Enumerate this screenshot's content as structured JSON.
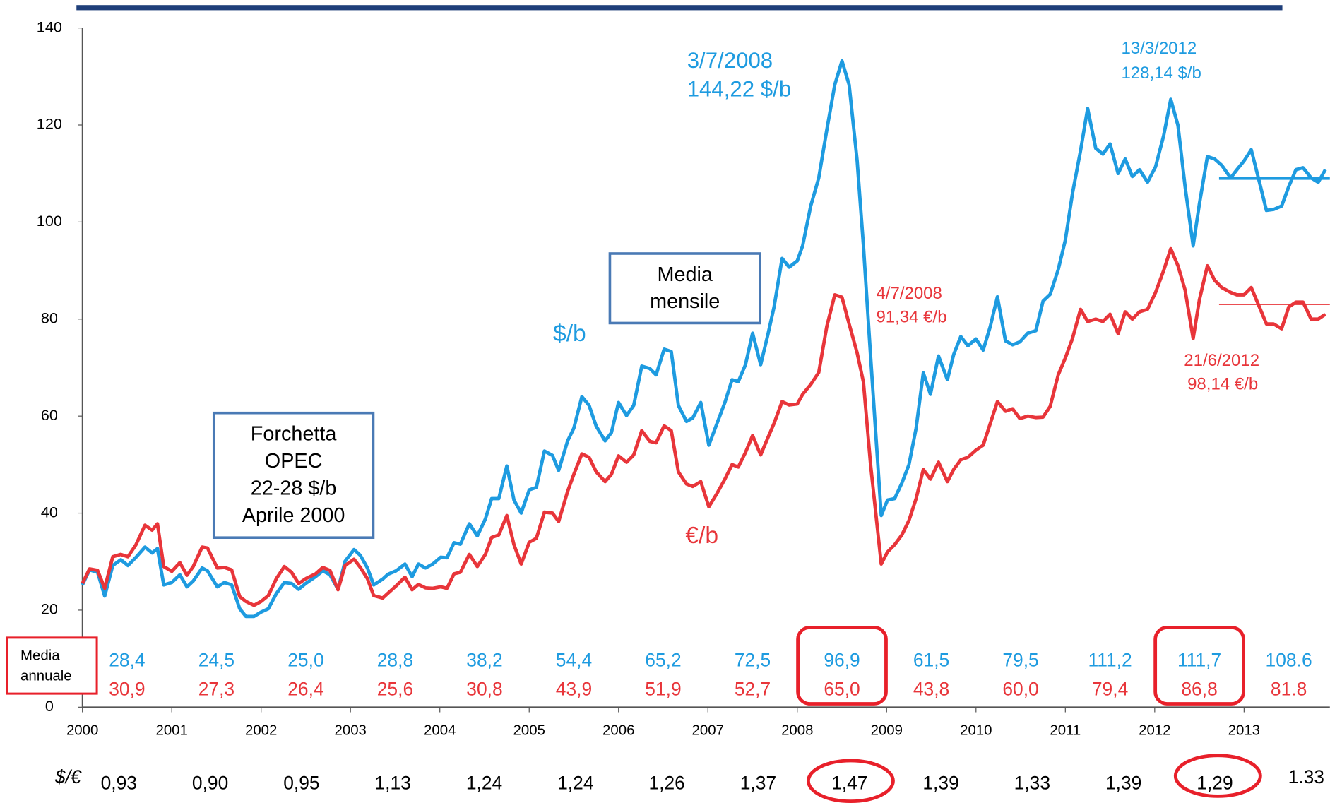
{
  "chart_data": {
    "type": "line",
    "x": [
      2000.0,
      2000.08,
      2000.17,
      2000.25,
      2000.34,
      2000.43,
      2000.51,
      2000.6,
      2000.7,
      2000.78,
      2000.84,
      2000.91,
      2001.0,
      2001.09,
      2001.17,
      2001.24,
      2001.34,
      2001.4,
      2001.51,
      2001.59,
      2001.67,
      2001.76,
      2001.83,
      2001.92,
      2002.0,
      2002.08,
      2002.17,
      2002.26,
      2002.34,
      2002.42,
      2002.5,
      2002.61,
      2002.69,
      2002.77,
      2002.86,
      2002.94,
      2003.04,
      2003.11,
      2003.19,
      2003.26,
      2003.36,
      2003.42,
      2003.51,
      2003.61,
      2003.69,
      2003.76,
      2003.84,
      2003.92,
      2004.01,
      2004.08,
      2004.16,
      2004.23,
      2004.33,
      2004.42,
      2004.51,
      2004.58,
      2004.66,
      2004.75,
      2004.83,
      2004.91,
      2005.0,
      2005.08,
      2005.17,
      2005.26,
      2005.33,
      2005.43,
      2005.5,
      2005.59,
      2005.67,
      2005.75,
      2005.85,
      2005.92,
      2006.0,
      2006.09,
      2006.17,
      2006.26,
      2006.35,
      2006.42,
      2006.51,
      2006.59,
      2006.67,
      2006.76,
      2006.83,
      2006.92,
      2007.01,
      2007.1,
      2007.19,
      2007.27,
      2007.34,
      2007.42,
      2007.5,
      2007.59,
      2007.67,
      2007.74,
      2007.83,
      2007.91,
      2008.0,
      2008.06,
      2008.15,
      2008.24,
      2008.33,
      2008.42,
      2008.5,
      2008.58,
      2008.67,
      2008.74,
      2008.82,
      2008.94,
      2009.01,
      2009.09,
      2009.17,
      2009.25,
      2009.33,
      2009.41,
      2009.49,
      2009.58,
      2009.68,
      2009.75,
      2009.83,
      2009.91,
      2010.0,
      2010.08,
      2010.16,
      2010.24,
      2010.33,
      2010.41,
      2010.49,
      2010.58,
      2010.67,
      2010.75,
      2010.83,
      2010.92,
      2011.0,
      2011.08,
      2011.17,
      2011.25,
      2011.34,
      2011.42,
      2011.5,
      2011.59,
      2011.67,
      2011.75,
      2011.83,
      2011.92,
      2012.01,
      2012.1,
      2012.18,
      2012.26,
      2012.34,
      2012.43,
      2012.5,
      2012.59,
      2012.67,
      2012.75,
      2012.85,
      2012.92,
      2013.0,
      2013.08,
      2013.16,
      2013.25,
      2013.33,
      2013.42,
      2013.5,
      2013.58,
      2013.66,
      2013.75,
      2013.83,
      2013.91
    ],
    "series": [
      {
        "name": "$/b",
        "color": "#1e9be0",
        "values": [
          25.2,
          28.3,
          27.8,
          22.9,
          29.2,
          30.4,
          29.2,
          30.9,
          33.0,
          31.8,
          32.7,
          25.2,
          25.7,
          27.3,
          24.8,
          26.0,
          28.7,
          28.1,
          24.8,
          25.7,
          25.2,
          20.3,
          18.7,
          18.7,
          19.6,
          20.3,
          23.4,
          25.7,
          25.5,
          24.3,
          25.5,
          26.9,
          28.1,
          27.3,
          24.3,
          30.1,
          32.5,
          31.3,
          28.7,
          25.2,
          26.4,
          27.4,
          28.1,
          29.5,
          26.9,
          29.5,
          28.7,
          29.5,
          30.9,
          30.8,
          33.9,
          33.6,
          37.8,
          35.3,
          38.8,
          43,
          43,
          49.7,
          42.7,
          40,
          44.8,
          45.3,
          52.8,
          51.9,
          48.8,
          54.9,
          57.5,
          64,
          62.2,
          57.9,
          54.9,
          56.6,
          62.8,
          60.1,
          62.2,
          70.3,
          69.8,
          68.5,
          73.8,
          73.3,
          62.2,
          58.9,
          59.6,
          62.8,
          54,
          58.4,
          62.8,
          67.5,
          67.1,
          70.6,
          77.1,
          70.6,
          76.7,
          82.5,
          92.5,
          90.7,
          92,
          95.1,
          103.3,
          109.1,
          119,
          128.3,
          133.2,
          128.3,
          112.6,
          95.1,
          72.4,
          39.5,
          42.7,
          43,
          46.2,
          50,
          57.5,
          68.9,
          64.5,
          72.4,
          67.5,
          72.7,
          76.4,
          74.5,
          75.9,
          73.6,
          78.5,
          84.6,
          75.5,
          74.7,
          75.3,
          77.1,
          77.6,
          83.7,
          85.1,
          90.2,
          96.3,
          105.9,
          114.7,
          123.4,
          115.2,
          114,
          116.1,
          110,
          113,
          109.4,
          110.8,
          108.2,
          111.4,
          117.8,
          125.3,
          119.9,
          107.3,
          95.1,
          103.8,
          113.5,
          113,
          111.7,
          109.1,
          110.8,
          112.6,
          114.9,
          109.1,
          102.4,
          102.6,
          103.3,
          107.3,
          110.8,
          111.2,
          109.1,
          108.2,
          110.8
        ]
      },
      {
        "name": "€/b",
        "color": "#e8353a",
        "values": [
          25.5,
          28.5,
          28.2,
          24.5,
          31,
          31.5,
          31,
          33.5,
          37.5,
          36.5,
          37.8,
          29,
          28,
          29.8,
          27.2,
          29,
          33,
          32.8,
          28.7,
          28.8,
          28.3,
          22.8,
          21.8,
          21,
          21.8,
          23,
          26.5,
          29,
          27.8,
          25.5,
          26.5,
          27.5,
          28.8,
          28.2,
          24.2,
          29.2,
          30.5,
          28.8,
          26.5,
          23,
          22.5,
          23.5,
          25,
          26.8,
          24.2,
          25.3,
          24.6,
          24.5,
          24.8,
          24.5,
          27.5,
          27.8,
          31.5,
          29,
          31.5,
          35,
          35.5,
          39.5,
          33.5,
          29.5,
          34,
          34.8,
          40.2,
          40,
          38.3,
          44.5,
          48,
          52.2,
          51.5,
          48.5,
          46.5,
          48,
          51.8,
          50.5,
          52,
          57,
          54.8,
          54.5,
          58,
          57,
          48.5,
          46,
          45.5,
          46.5,
          41.3,
          44,
          47,
          50,
          49.5,
          52.5,
          56,
          52,
          55.5,
          58.5,
          63,
          62.3,
          62.5,
          64.5,
          66.5,
          69,
          78.5,
          85,
          84.5,
          79,
          73,
          67,
          50,
          29.5,
          32,
          33.5,
          35.5,
          38.5,
          43,
          49,
          47,
          50.5,
          46.5,
          49,
          51,
          51.5,
          53,
          54,
          58.5,
          63,
          61,
          61.5,
          59.5,
          60,
          59.7,
          59.8,
          62,
          68.5,
          72,
          76,
          82,
          79.5,
          80,
          79.5,
          81,
          77,
          81.5,
          80,
          81.5,
          82,
          85.5,
          90,
          94.5,
          91,
          86,
          76,
          84,
          91,
          88,
          86.5,
          85.5,
          85,
          85,
          86.5,
          83,
          79,
          79,
          78,
          82.5,
          83.5,
          83.5,
          80,
          80,
          81
        ]
      }
    ],
    "xlim": [
      2000,
      2013.96
    ],
    "ylim": [
      0,
      140
    ],
    "xticks": [
      2000,
      2001,
      2002,
      2003,
      2004,
      2005,
      2006,
      2007,
      2008,
      2009,
      2010,
      2011,
      2012,
      2013
    ],
    "yticks": [
      0,
      20,
      40,
      60,
      80,
      100,
      120,
      140
    ],
    "reference_lines": [
      {
        "series": 0,
        "value": 109,
        "from": 2012.72
      },
      {
        "series": 1,
        "value": 83,
        "from": 2012.72
      }
    ],
    "annotations": [
      [
        "3/7/2008",
        "144,22 $/b"
      ],
      [
        "13/3/2012",
        "128,14 $/b"
      ],
      [
        "4/7/2008",
        "91,34 €/b"
      ],
      [
        "21/6/2012",
        "98,14 €/b"
      ]
    ],
    "text_boxes": [
      [
        "Forchetta",
        "OPEC",
        "22-28 $/b",
        "Aprile 2000"
      ],
      [
        "Media",
        "mensile"
      ]
    ],
    "annual_average": {
      "label": [
        "Media",
        "annuale"
      ],
      "usd": [
        "28,4",
        "24,5",
        "25,0",
        "28,8",
        "38,2",
        "54,4",
        "65,2",
        "72,5",
        "96,9",
        "61,5",
        "79,5",
        "111,2",
        "111,7",
        "108.6"
      ],
      "eur": [
        "30,9",
        "27,3",
        "26,4",
        "25,6",
        "30,8",
        "43,9",
        "51,9",
        "52,7",
        "65,0",
        "43,8",
        "60,0",
        "79,4",
        "86,8",
        "81.8"
      ]
    },
    "exchange_rate": {
      "label": "$/€",
      "values": [
        "0,93",
        "0,90",
        "0,95",
        "1,13",
        "1,24",
        "1,24",
        "1,26",
        "1,37",
        "1,47",
        "1,39",
        "1,33",
        "1,39",
        "1,29",
        "1.33"
      ]
    }
  }
}
